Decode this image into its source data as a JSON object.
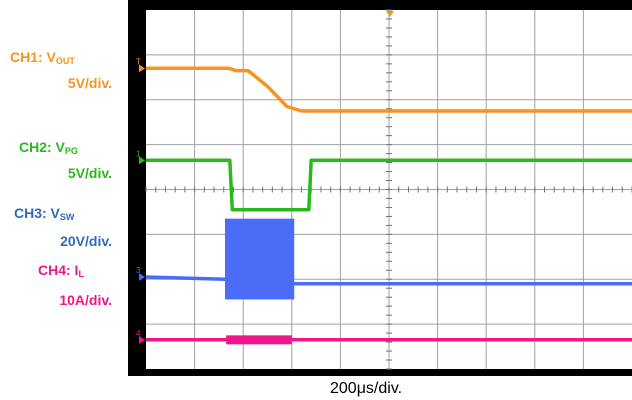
{
  "chart_data": {
    "type": "line",
    "title": "",
    "xlabel": "200μs/div.",
    "grid": true,
    "grid_divisions": {
      "x": 10,
      "y": 8
    },
    "x_unit": "μs",
    "x_per_div": 200,
    "xlim": [
      0,
      2000
    ],
    "ylim_divisions": [
      -4,
      4
    ],
    "colors": {
      "ch1": "#f7941d",
      "ch2": "#28b91e",
      "ch3": "#4a6cf7",
      "ch4": "#f0168a",
      "screen_bg": "#ffffff",
      "frame": "#000000",
      "grid": "#a0a0a0"
    },
    "series": [
      {
        "name": "CH1: VOUT",
        "label_prefix": "CH1: V",
        "label_sub": "OUT",
        "scale": "5V/div.",
        "marker": "T",
        "x": [
          0,
          340,
          370,
          420,
          500,
          580,
          640,
          2000
        ],
        "y": [
          2.7,
          2.7,
          2.65,
          2.65,
          2.3,
          1.85,
          1.75,
          1.75
        ]
      },
      {
        "name": "CH2: VPG",
        "label_prefix": "CH2: V",
        "label_sub": "PG",
        "scale": "5V/div.",
        "marker": "1",
        "x": [
          0,
          345,
          355,
          670,
          680,
          2000
        ],
        "y": [
          0.65,
          0.65,
          -0.45,
          -0.45,
          0.65,
          0.65
        ]
      },
      {
        "name": "CH3: VSW",
        "label_prefix": "CH3: V",
        "label_sub": "SW",
        "scale": "20V/div.",
        "marker": "3",
        "x": [
          0,
          325,
          610,
          2000
        ],
        "y": [
          -1.95,
          -2.0,
          -2.1,
          -2.1
        ],
        "switching_region_x": [
          325,
          610
        ],
        "switching_band_y": [
          -2.45,
          -0.65
        ]
      },
      {
        "name": "CH4: IL",
        "label_prefix": "CH4: I",
        "label_sub": "L",
        "scale": "10A/div.",
        "marker": "4",
        "x": [
          0,
          330,
          600,
          2000
        ],
        "y": [
          -3.35,
          -3.35,
          -3.35,
          -3.35
        ],
        "ripple_region_x": [
          330,
          600
        ],
        "ripple_band_y": [
          -3.45,
          -3.25
        ]
      }
    ]
  }
}
